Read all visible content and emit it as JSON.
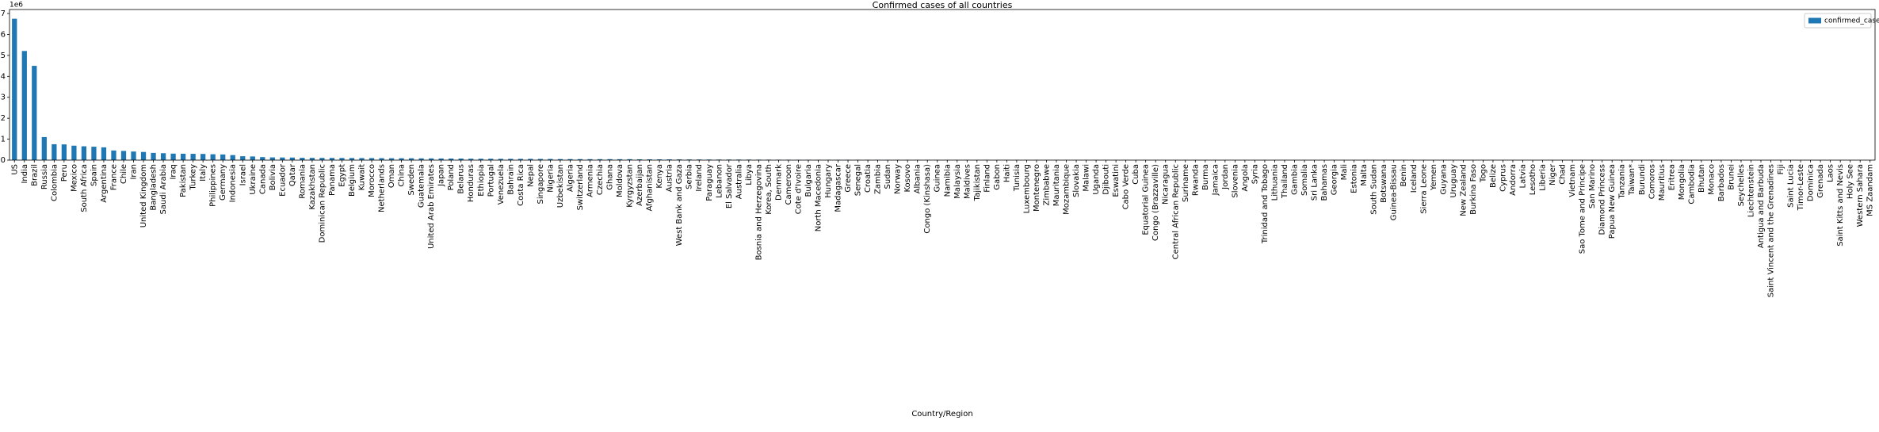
{
  "chart_data": {
    "type": "bar",
    "title": "Confirmed cases of all countries",
    "x_label": "Country/Region",
    "y_offset_text": "1e6",
    "legend": "upper right",
    "grid": false,
    "ylim": [
      0,
      7190000
    ],
    "yticks": [
      {
        "value": 0,
        "label": "0"
      },
      {
        "value": 1000000,
        "label": "1"
      },
      {
        "value": 2000000,
        "label": "2"
      },
      {
        "value": 3000000,
        "label": "3"
      },
      {
        "value": 4000000,
        "label": "4"
      },
      {
        "value": 5000000,
        "label": "5"
      },
      {
        "value": 6000000,
        "label": "6"
      },
      {
        "value": 7000000,
        "label": "7"
      }
    ],
    "categories": [
      "US",
      "India",
      "Brazil",
      "Russia",
      "Colombia",
      "Peru",
      "Mexico",
      "South Africa",
      "Spain",
      "Argentina",
      "France",
      "Chile",
      "Iran",
      "United Kingdom",
      "Bangladesh",
      "Saudi Arabia",
      "Iraq",
      "Pakistan",
      "Turkey",
      "Italy",
      "Philippines",
      "Germany",
      "Indonesia",
      "Israel",
      "Ukraine",
      "Canada",
      "Bolivia",
      "Ecuador",
      "Qatar",
      "Romania",
      "Kazakhstan",
      "Dominican Republic",
      "Panama",
      "Egypt",
      "Belgium",
      "Kuwait",
      "Morocco",
      "Netherlands",
      "Oman",
      "China",
      "Sweden",
      "Guatemala",
      "United Arab Emirates",
      "Japan",
      "Poland",
      "Belarus",
      "Honduras",
      "Ethiopia",
      "Portugal",
      "Venezuela",
      "Bahrain",
      "Costa Rica",
      "Nepal",
      "Singapore",
      "Nigeria",
      "Uzbekistan",
      "Algeria",
      "Switzerland",
      "Armenia",
      "Czechia",
      "Ghana",
      "Moldova",
      "Kyrgyzstan",
      "Azerbaijan",
      "Afghanistan",
      "Kenya",
      "Austria",
      "West Bank and Gaza",
      "Serbia",
      "Ireland",
      "Paraguay",
      "Lebanon",
      "El Salvador",
      "Australia",
      "Libya",
      "Bosnia and Herzegovina",
      "Korea, South",
      "Denmark",
      "Cameroon",
      "Cote d'Ivoire",
      "Bulgaria",
      "North Macedonia",
      "Hungary",
      "Madagascar",
      "Greece",
      "Senegal",
      "Croatia",
      "Zambia",
      "Sudan",
      "Norway",
      "Kosovo",
      "Albania",
      "Congo (Kinshasa)",
      "Guinea",
      "Namibia",
      "Malaysia",
      "Maldives",
      "Tajikistan",
      "Finland",
      "Gabon",
      "Haiti",
      "Tunisia",
      "Luxembourg",
      "Montenegro",
      "Zimbabwe",
      "Mauritania",
      "Mozambique",
      "Slovakia",
      "Malawi",
      "Uganda",
      "Djibouti",
      "Eswatini",
      "Cabo Verde",
      "Cuba",
      "Equatorial Guinea",
      "Congo (Brazzaville)",
      "Nicaragua",
      "Central African Republic",
      "Suriname",
      "Rwanda",
      "Burma",
      "Jamaica",
      "Jordan",
      "Slovenia",
      "Angola",
      "Syria",
      "Trinidad and Tobago",
      "Lithuania",
      "Thailand",
      "Gambia",
      "Somalia",
      "Sri Lanka",
      "Bahamas",
      "Georgia",
      "Mali",
      "Estonia",
      "Malta",
      "South Sudan",
      "Botswana",
      "Guinea-Bissau",
      "Benin",
      "Iceland",
      "Sierra Leone",
      "Yemen",
      "Guyana",
      "Uruguay",
      "New Zealand",
      "Burkina Faso",
      "Togo",
      "Belize",
      "Cyprus",
      "Andorra",
      "Latvia",
      "Lesotho",
      "Liberia",
      "Niger",
      "Chad",
      "Vietnam",
      "Sao Tome and Principe",
      "San Marino",
      "Diamond Princess",
      "Papua New Guinea",
      "Tanzania",
      "Taiwan*",
      "Burundi",
      "Comoros",
      "Mauritius",
      "Eritrea",
      "Mongolia",
      "Cambodia",
      "Bhutan",
      "Monaco",
      "Barbados",
      "Brunei",
      "Seychelles",
      "Liechtenstein",
      "Antigua and Barbuda",
      "Saint Vincent and the Grenadines",
      "Fiji",
      "Saint Lucia",
      "Timor-Leste",
      "Dominica",
      "Grenada",
      "Laos",
      "Saint Kitts and Nevis",
      "Holy See",
      "Western Sahara",
      "MS Zaandam"
    ],
    "series": [
      {
        "name": "confirmed_cases",
        "color": "#1f77b4",
        "values": [
          6750000,
          5210000,
          4500000,
          1100000,
          760000,
          750000,
          690000,
          660000,
          640000,
          610000,
          460000,
          440000,
          410000,
          390000,
          345000,
          330000,
          310000,
          305000,
          300000,
          295000,
          280000,
          270000,
          240000,
          185000,
          175000,
          145000,
          130000,
          125000,
          122000,
          110000,
          107000,
          105000,
          104000,
          102000,
          100000,
          97000,
          97000,
          93000,
          90000,
          90000,
          88000,
          84000,
          82000,
          78000,
          76000,
          75000,
          68000,
          66000,
          66000,
          62000,
          62000,
          61000,
          61000,
          57000,
          56000,
          50000,
          49000,
          48000,
          46000,
          46000,
          46000,
          44000,
          45000,
          39000,
          39000,
          36000,
          36000,
          36000,
          32000,
          31000,
          29000,
          28000,
          28000,
          27000,
          26000,
          23000,
          23000,
          21000,
          20000,
          19000,
          18000,
          17000,
          16000,
          16000,
          15000,
          15000,
          14000,
          14000,
          13600,
          12900,
          13000,
          12000,
          10500,
          10000,
          9500,
          10000,
          9500,
          9400,
          8700,
          8500,
          8600,
          8000,
          7600,
          7000,
          7600,
          7300,
          5700,
          4800,
          5600,
          5600,
          5400,
          5000,
          4900,
          4600,
          5000,
          5000,
          4600,
          4700,
          4900,
          4600,
          4500,
          3900,
          2900,
          3000,
          3600,
          3600,
          3300,
          3300,
          3500,
          3500,
          3400,
          3200,
          3000,
          2800,
          2800,
          2800,
          2800,
          2600,
          2000,
          2300,
          2200,
          2300,
          2200,
          2000,
          1600,
          1800,
          1800,
          1400,
          1400,
          1300,
          1500,
          1400,
          1400,
          1300,
          1300,
          1200,
          1100,
          1100,
          900,
          720,
          712,
          530,
          510,
          490,
          460,
          460,
          360,
          340,
          310,
          275,
          230,
          220,
          180,
          145,
          140,
          110,
          100,
          80,
          32,
          27,
          27,
          24,
          24,
          23,
          17,
          12,
          10,
          9
        ]
      }
    ]
  }
}
